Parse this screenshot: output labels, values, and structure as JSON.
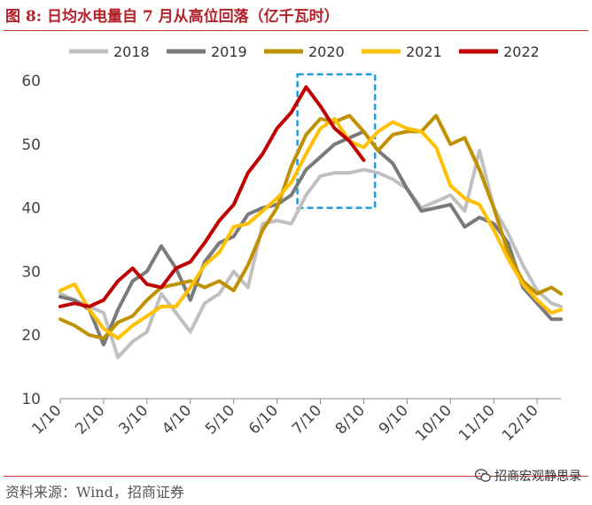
{
  "header": {
    "title": "图 8:  日均水电量自 7 月从高位回落（亿千瓦时）"
  },
  "footer": {
    "source": "资料来源：Wind，招商证券",
    "watermark": "招商宏观静思录",
    "watermark_icon": "wechat-icon"
  },
  "colors": {
    "2018": "#c0c0c0",
    "2019": "#7a7a7a",
    "2020": "#bf9000",
    "2021": "#ffc000",
    "2022": "#c00000",
    "highlight": "#1f9ad6"
  },
  "chart_data": {
    "type": "line",
    "title": "日均水电量自 7 月从高位回落（亿千瓦时）",
    "x_labels": [
      "1/10",
      "2/10",
      "3/10",
      "4/10",
      "5/10",
      "6/10",
      "7/10",
      "8/10",
      "9/10",
      "10/10",
      "11/10",
      "12/10"
    ],
    "ylim": [
      10,
      60
    ],
    "yticks": [
      10,
      20,
      30,
      40,
      50,
      60
    ],
    "xlim": [
      1,
      12.55
    ],
    "grid": false,
    "legend": "top",
    "highlight_box": {
      "x_range": [
        6.47,
        8.26
      ],
      "y_range": [
        40,
        61
      ]
    },
    "series": [
      {
        "name": "2018",
        "x": [
          1.0,
          1.33,
          1.67,
          2.0,
          2.33,
          2.67,
          3.0,
          3.33,
          3.67,
          4.0,
          4.33,
          4.67,
          5.0,
          5.33,
          5.67,
          6.0,
          6.33,
          6.67,
          7.0,
          7.33,
          7.67,
          8.0,
          8.33,
          8.67,
          9.0,
          9.33,
          9.67,
          10.0,
          10.33,
          10.67,
          11.0,
          11.33,
          11.67,
          12.0,
          12.33,
          12.55
        ],
        "y": [
          26.5,
          25.5,
          24.5,
          23.5,
          16.5,
          19,
          20.5,
          26.5,
          23.5,
          20.5,
          25,
          26.5,
          30,
          27.5,
          37.5,
          38,
          37.5,
          42,
          45,
          45.5,
          45.5,
          46,
          45.5,
          44.5,
          43,
          40,
          41,
          42,
          39.5,
          49,
          40,
          36,
          31,
          27,
          25,
          24.5
        ]
      },
      {
        "name": "2019",
        "x": [
          1.0,
          1.33,
          1.67,
          2.0,
          2.33,
          2.67,
          3.0,
          3.33,
          3.67,
          4.0,
          4.33,
          4.67,
          5.0,
          5.33,
          5.67,
          6.0,
          6.33,
          6.67,
          7.0,
          7.33,
          7.67,
          8.0,
          8.33,
          8.67,
          9.0,
          9.33,
          9.67,
          10.0,
          10.33,
          10.67,
          11.0,
          11.33,
          11.67,
          12.0,
          12.33,
          12.55
        ],
        "y": [
          26,
          25.5,
          24,
          18.5,
          24,
          28.5,
          30,
          34,
          30.5,
          25.5,
          31.5,
          34.5,
          35.5,
          39,
          40,
          40.5,
          42,
          46,
          48,
          50,
          51,
          52,
          49,
          47,
          43,
          39.5,
          40,
          40.5,
          37,
          38.5,
          37.5,
          34.5,
          27.5,
          25,
          22.5,
          22.5
        ]
      },
      {
        "name": "2020",
        "x": [
          1.0,
          1.33,
          1.67,
          2.0,
          2.33,
          2.67,
          3.0,
          3.33,
          3.67,
          4.0,
          4.33,
          4.67,
          5.0,
          5.33,
          5.67,
          6.0,
          6.33,
          6.67,
          7.0,
          7.33,
          7.67,
          8.0,
          8.33,
          8.67,
          9.0,
          9.33,
          9.67,
          10.0,
          10.33,
          10.67,
          11.0,
          11.33,
          11.67,
          12.0,
          12.33,
          12.55
        ],
        "y": [
          22.5,
          21.5,
          20,
          19.5,
          22,
          23,
          25.5,
          27.5,
          28,
          28.5,
          27.5,
          28.5,
          27,
          31,
          36.5,
          40,
          46.5,
          51.5,
          54,
          53.5,
          54.5,
          52,
          49,
          51.5,
          52,
          52,
          54.5,
          50,
          51,
          46,
          40,
          33,
          28.5,
          26.5,
          27.5,
          26.5
        ]
      },
      {
        "name": "2021",
        "x": [
          1.0,
          1.33,
          1.67,
          2.0,
          2.33,
          2.67,
          3.0,
          3.33,
          3.67,
          4.0,
          4.33,
          4.67,
          5.0,
          5.33,
          5.67,
          6.0,
          6.33,
          6.67,
          7.0,
          7.33,
          7.67,
          8.0,
          8.33,
          8.67,
          9.0,
          9.33,
          9.67,
          10.0,
          10.33,
          10.67,
          11.0,
          11.33,
          11.67,
          12.0,
          12.33,
          12.55
        ],
        "y": [
          27,
          28,
          24,
          21,
          19.5,
          21.5,
          23,
          24.5,
          24.5,
          27.5,
          31,
          33,
          37,
          37.5,
          39.5,
          41.5,
          44,
          48.5,
          52.5,
          54,
          50.5,
          49.5,
          52,
          53.5,
          52.5,
          52,
          49.5,
          43.5,
          41.5,
          40.5,
          36.5,
          32,
          28,
          25.5,
          23.5,
          24
        ]
      },
      {
        "name": "2022",
        "x": [
          1.0,
          1.33,
          1.67,
          2.0,
          2.33,
          2.67,
          3.0,
          3.33,
          3.67,
          4.0,
          4.33,
          4.67,
          5.0,
          5.33,
          5.67,
          6.0,
          6.33,
          6.67,
          7.0,
          7.33,
          7.67,
          8.0
        ],
        "y": [
          24.5,
          25,
          24.5,
          25.5,
          28.5,
          30.5,
          28,
          27.5,
          30.5,
          31.5,
          34.5,
          38,
          40.5,
          45.5,
          48.5,
          52.5,
          55,
          59,
          56,
          52.5,
          50.5,
          47.5
        ]
      }
    ]
  }
}
